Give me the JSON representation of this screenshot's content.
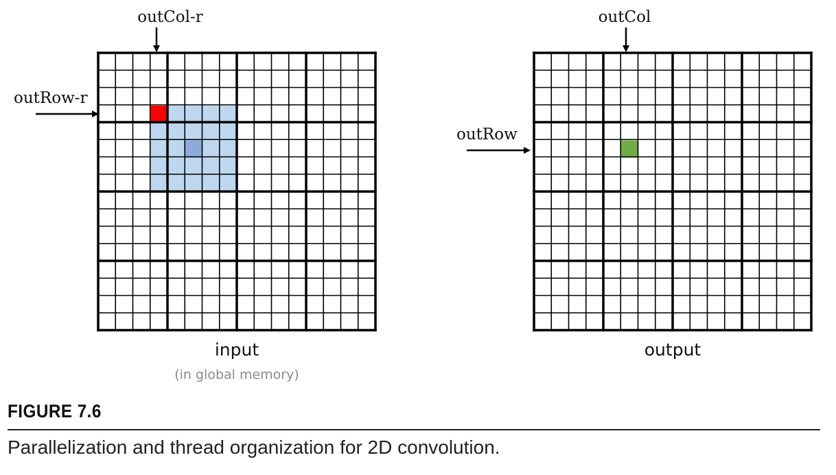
{
  "input_grid": {
    "label": "input",
    "sublabel": "(in global memory)",
    "col_label": "outCol-r",
    "row_label": "outRow-r",
    "colors": {
      "corner": "#ff0000",
      "patch": "#bdd7ee",
      "center": "#8eaadb"
    }
  },
  "output_grid": {
    "label": "output",
    "col_label": "outCol",
    "row_label": "outRow",
    "colors": {
      "output_pixel": "#70ad47"
    }
  },
  "caption": {
    "number": "FIGURE 7.6",
    "text": "Parallelization and thread organization for 2D convolution."
  }
}
